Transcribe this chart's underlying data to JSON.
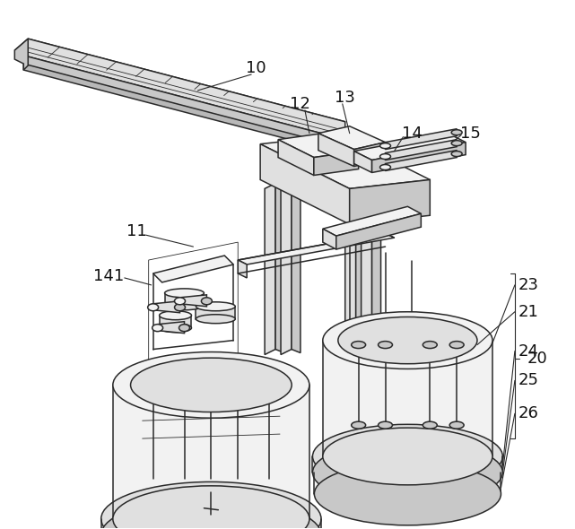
{
  "bg_color": "#ffffff",
  "lc": "#2a2a2a",
  "lw": 1.1,
  "thin": 0.6,
  "fc_light": "#f2f2f2",
  "fc_mid": "#e0e0e0",
  "fc_dark": "#c8c8c8",
  "fc_darker": "#b8b8b8",
  "label_fs": 13,
  "label_color": "#111111",
  "figw": 6.41,
  "figh": 5.9,
  "dpi": 100
}
